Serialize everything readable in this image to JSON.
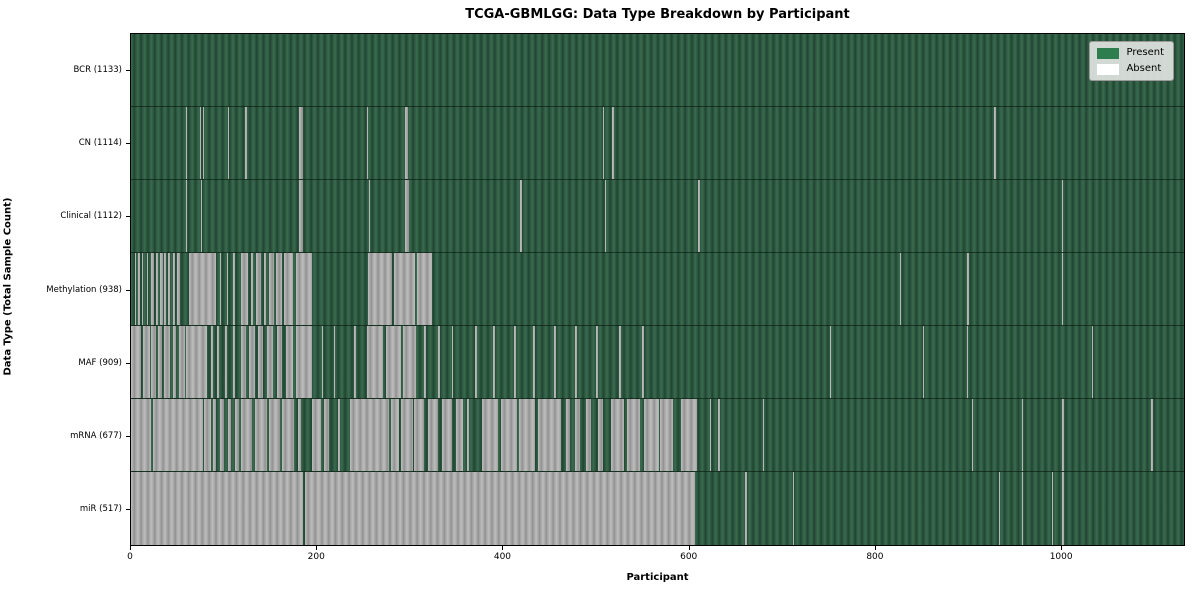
{
  "chart_data": {
    "type": "heatmap",
    "title": "TCGA-GBMLGG: Data Type Breakdown by Participant",
    "xlabel": "Participant",
    "ylabel": "Data Type (Total Sample Count)",
    "legend": {
      "present_label": "Present",
      "absent_label": "Absent",
      "position": "upper right"
    },
    "colors": {
      "present": "#2d7d4f",
      "absent": "#ffffff",
      "absent_rendered": "#ababab",
      "row_separator": "#1a281e"
    },
    "n_participants": 1133,
    "x_ticks": [
      0,
      200,
      400,
      600,
      800,
      1000
    ],
    "xlim": [
      0,
      1133
    ],
    "grid": false,
    "rows": [
      {
        "name": "BCR",
        "label": "BCR (1133)",
        "present_count": 1133,
        "absent_segments": []
      },
      {
        "name": "CN",
        "label": "CN (1114)",
        "present_count": 1114,
        "absent_segments": [
          [
            59,
            60
          ],
          [
            74,
            75
          ],
          [
            77,
            78
          ],
          [
            104,
            105
          ],
          [
            123,
            124
          ],
          [
            181,
            185
          ],
          [
            254,
            255
          ],
          [
            295,
            298
          ],
          [
            508,
            509
          ],
          [
            518,
            519
          ],
          [
            929,
            930
          ]
        ]
      },
      {
        "name": "Clinical",
        "label": "Clinical (1112)",
        "present_count": 1112,
        "absent_segments": [
          [
            59,
            60
          ],
          [
            75,
            76
          ],
          [
            181,
            185
          ],
          [
            256,
            257
          ],
          [
            295,
            299
          ],
          [
            419,
            421
          ],
          [
            510,
            511
          ],
          [
            610,
            612
          ],
          [
            1002,
            1003
          ]
        ]
      },
      {
        "name": "Methylation",
        "label": "Methylation (938)",
        "present_count": 938,
        "absent_segments": [
          [
            4,
            5
          ],
          [
            8,
            9
          ],
          [
            12,
            13
          ],
          [
            17,
            18
          ],
          [
            21,
            25
          ],
          [
            27,
            29
          ],
          [
            31,
            34
          ],
          [
            36,
            38
          ],
          [
            40,
            42
          ],
          [
            45,
            47
          ],
          [
            50,
            53
          ],
          [
            62,
            91
          ],
          [
            96,
            97
          ],
          [
            103,
            104
          ],
          [
            110,
            112
          ],
          [
            118,
            126
          ],
          [
            129,
            131
          ],
          [
            134,
            140
          ],
          [
            143,
            145
          ],
          [
            148,
            154
          ],
          [
            156,
            162
          ],
          [
            165,
            174
          ],
          [
            177,
            195
          ],
          [
            255,
            281
          ],
          [
            283,
            306
          ],
          [
            308,
            324
          ],
          [
            827,
            828
          ],
          [
            900,
            901
          ],
          [
            1002,
            1003
          ]
        ]
      },
      {
        "name": "MAF",
        "label": "MAF (909)",
        "present_count": 909,
        "absent_segments": [
          [
            0,
            11
          ],
          [
            13,
            20
          ],
          [
            22,
            27
          ],
          [
            29,
            33
          ],
          [
            36,
            42
          ],
          [
            45,
            48
          ],
          [
            52,
            58
          ],
          [
            59,
            82
          ],
          [
            86,
            88
          ],
          [
            93,
            95
          ],
          [
            101,
            103
          ],
          [
            110,
            112
          ],
          [
            118,
            124
          ],
          [
            127,
            133
          ],
          [
            137,
            142
          ],
          [
            146,
            153
          ],
          [
            157,
            163
          ],
          [
            167,
            174
          ],
          [
            177,
            195
          ],
          [
            205,
            206
          ],
          [
            218,
            219
          ],
          [
            240,
            242
          ],
          [
            254,
            271
          ],
          [
            274,
            290
          ],
          [
            293,
            307
          ],
          [
            315,
            317
          ],
          [
            330,
            332
          ],
          [
            345,
            347
          ],
          [
            370,
            372
          ],
          [
            390,
            392
          ],
          [
            412,
            414
          ],
          [
            433,
            435
          ],
          [
            455,
            457
          ],
          [
            478,
            480
          ],
          [
            500,
            502
          ],
          [
            525,
            527
          ],
          [
            550,
            552
          ],
          [
            752,
            753
          ],
          [
            852,
            853
          ],
          [
            899,
            900
          ],
          [
            1034,
            1035
          ]
        ]
      },
      {
        "name": "mRNA",
        "label": "mRNA (677)",
        "present_count": 677,
        "absent_segments": [
          [
            0,
            22
          ],
          [
            24,
            77
          ],
          [
            79,
            86
          ],
          [
            88,
            92
          ],
          [
            96,
            100
          ],
          [
            104,
            108
          ],
          [
            112,
            116
          ],
          [
            118,
            130
          ],
          [
            133,
            146
          ],
          [
            149,
            160
          ],
          [
            163,
            175
          ],
          [
            180,
            183
          ],
          [
            195,
            204
          ],
          [
            208,
            213
          ],
          [
            223,
            225
          ],
          [
            236,
            278
          ],
          [
            280,
            288
          ],
          [
            291,
            303
          ],
          [
            305,
            315
          ],
          [
            320,
            330
          ],
          [
            335,
            345
          ],
          [
            350,
            357
          ],
          [
            362,
            364
          ],
          [
            378,
            395
          ],
          [
            398,
            415
          ],
          [
            418,
            435
          ],
          [
            438,
            463
          ],
          [
            468,
            472
          ],
          [
            478,
            483
          ],
          [
            490,
            495
          ],
          [
            502,
            508
          ],
          [
            516,
            530
          ],
          [
            534,
            548
          ],
          [
            552,
            568
          ],
          [
            569,
            583
          ],
          [
            592,
            609
          ],
          [
            623,
            624
          ],
          [
            632,
            633
          ],
          [
            680,
            681
          ],
          [
            905,
            906
          ],
          [
            959,
            960
          ],
          [
            1002,
            1004
          ],
          [
            1098,
            1099
          ]
        ]
      },
      {
        "name": "miR",
        "label": "miR (517)",
        "present_count": 517,
        "absent_segments": [
          [
            0,
            185
          ],
          [
            187,
            607
          ],
          [
            661,
            662
          ],
          [
            712,
            713
          ],
          [
            934,
            935
          ],
          [
            959,
            960
          ],
          [
            991,
            992
          ],
          [
            1002,
            1004
          ]
        ]
      }
    ]
  }
}
